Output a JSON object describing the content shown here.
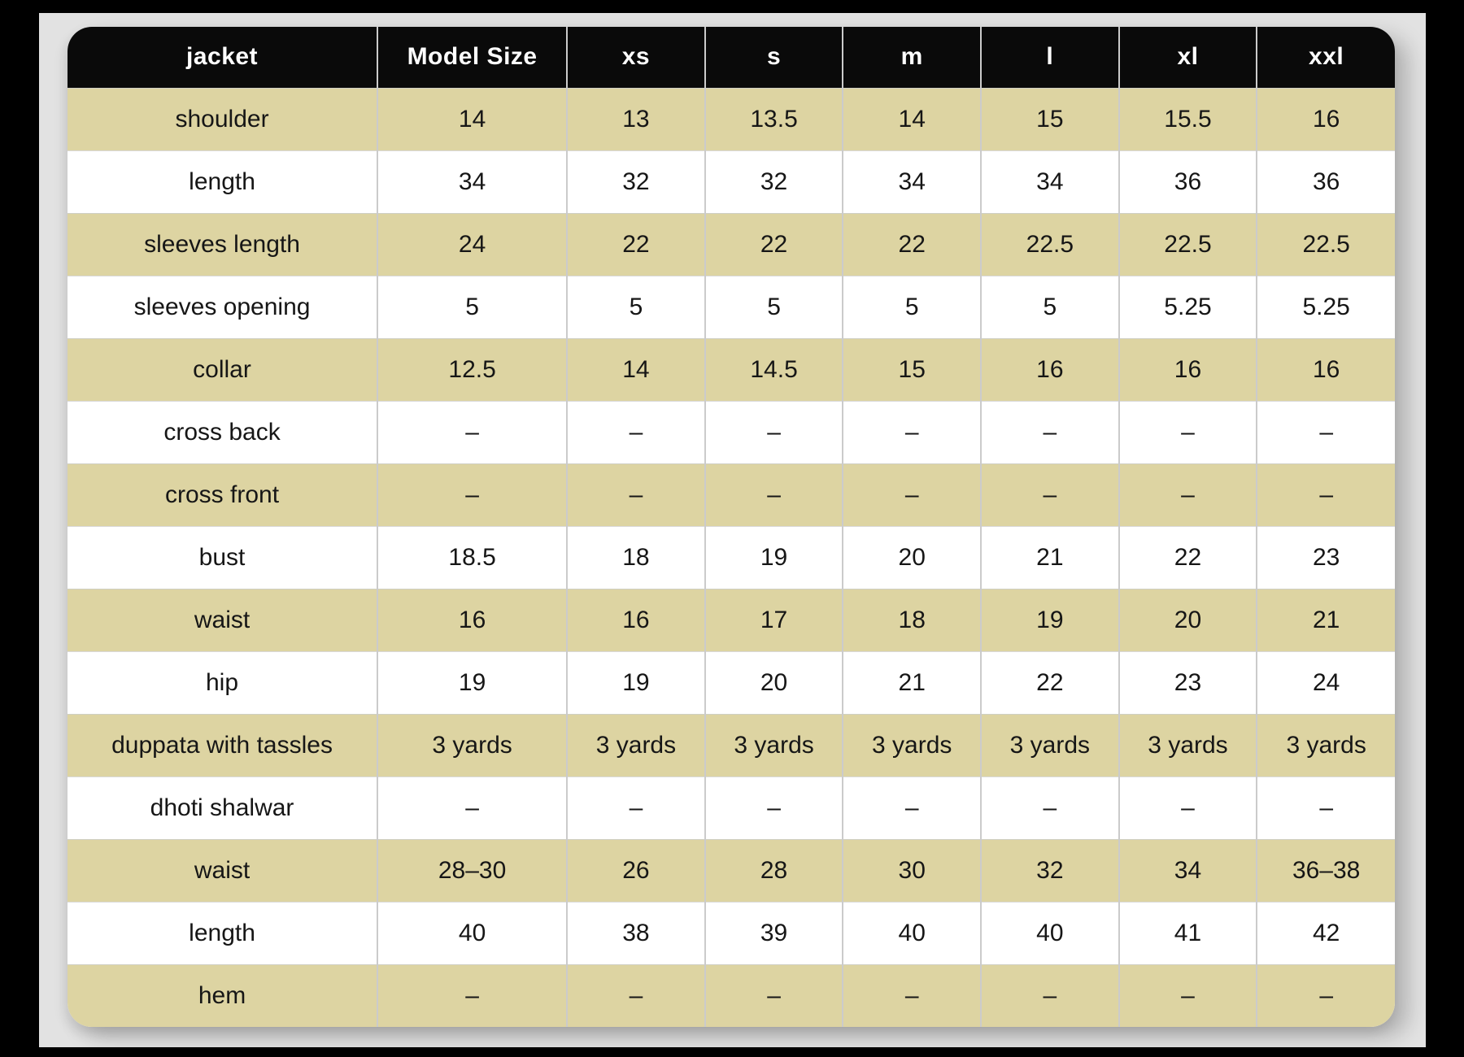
{
  "theme": {
    "workspace_bg": "#e2e2e2",
    "header_bg": "#0a0a0a",
    "header_text": "#ffffff",
    "stripe_color": "#ddd4a2",
    "grid_color": "#cbcbcb",
    "text_color": "#161616"
  },
  "table": {
    "header": [
      "jacket",
      "Model Size",
      "xs",
      "s",
      "m",
      "l",
      "xl",
      "xxl"
    ],
    "rows": [
      {
        "label": "shoulder",
        "values": [
          "14",
          "13",
          "13.5",
          "14",
          "15",
          "15.5",
          "16"
        ]
      },
      {
        "label": "length",
        "values": [
          "34",
          "32",
          "32",
          "34",
          "34",
          "36",
          "36"
        ]
      },
      {
        "label": "sleeves length",
        "values": [
          "24",
          "22",
          "22",
          "22",
          "22.5",
          "22.5",
          "22.5"
        ]
      },
      {
        "label": "sleeves opening",
        "values": [
          "5",
          "5",
          "5",
          "5",
          "5",
          "5.25",
          "5.25"
        ]
      },
      {
        "label": "collar",
        "values": [
          "12.5",
          "14",
          "14.5",
          "15",
          "16",
          "16",
          "16"
        ]
      },
      {
        "label": "cross back",
        "values": [
          "–",
          "–",
          "–",
          "–",
          "–",
          "–",
          "–"
        ]
      },
      {
        "label": "cross front",
        "values": [
          "–",
          "–",
          "–",
          "–",
          "–",
          "–",
          "–"
        ]
      },
      {
        "label": "bust",
        "values": [
          "18.5",
          "18",
          "19",
          "20",
          "21",
          "22",
          "23"
        ]
      },
      {
        "label": "waist",
        "values": [
          "16",
          "16",
          "17",
          "18",
          "19",
          "20",
          "21"
        ]
      },
      {
        "label": "hip",
        "values": [
          "19",
          "19",
          "20",
          "21",
          "22",
          "23",
          "24"
        ]
      },
      {
        "label": "duppata with tassles",
        "values": [
          "3 yards",
          "3 yards",
          "3 yards",
          "3 yards",
          "3 yards",
          "3 yards",
          "3 yards"
        ]
      },
      {
        "label": "dhoti shalwar",
        "values": [
          "–",
          "–",
          "–",
          "–",
          "–",
          "–",
          "–"
        ]
      },
      {
        "label": "waist",
        "values": [
          "28–30",
          "26",
          "28",
          "30",
          "32",
          "34",
          "36–38"
        ]
      },
      {
        "label": "length",
        "values": [
          "40",
          "38",
          "39",
          "40",
          "40",
          "41",
          "42"
        ]
      },
      {
        "label": "hem",
        "values": [
          "–",
          "–",
          "–",
          "–",
          "–",
          "–",
          "–"
        ]
      }
    ]
  }
}
